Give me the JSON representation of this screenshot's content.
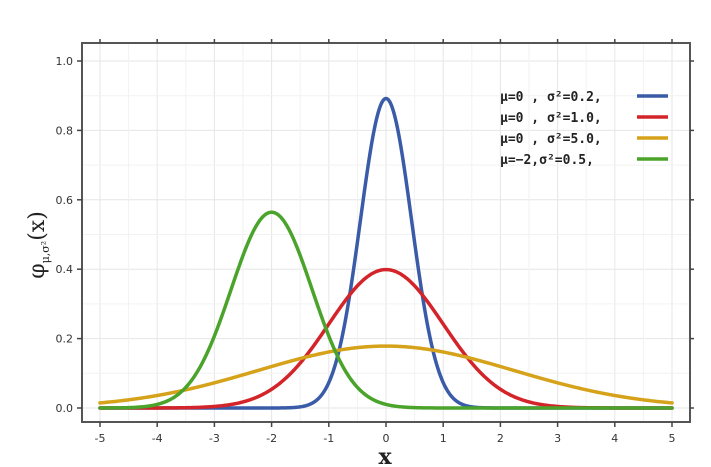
{
  "chart_data": {
    "type": "line",
    "title": "",
    "xlabel": "x",
    "ylabel": "φ",
    "ylabel_subscript": "μ,σ²",
    "ylabel_arg": "(x)",
    "xlim": [
      -5,
      5
    ],
    "ylim": [
      0,
      1.0
    ],
    "x_ticks": [
      -5,
      -4,
      -3,
      -2,
      -1,
      0,
      1,
      2,
      3,
      4,
      5
    ],
    "x_tick_labels": [
      "-5",
      "-4",
      "-3",
      "-2",
      "-1",
      "0",
      "1",
      "2",
      "3",
      "4",
      "5"
    ],
    "y_ticks": [
      0,
      0.2,
      0.4,
      0.6,
      0.8,
      1.0
    ],
    "y_tick_labels": [
      "0.0",
      "0.2",
      "0.4",
      "0.6",
      "0.8",
      "1.0"
    ],
    "grid": true,
    "legend_position": "top-right",
    "series": [
      {
        "name": "μ=0 , σ²=0.2,",
        "mu": 0,
        "variance": 0.2,
        "color": "#3a5ba8"
      },
      {
        "name": "μ=0 , σ²=1.0,",
        "mu": 0,
        "variance": 1.0,
        "color": "#d3242a"
      },
      {
        "name": "μ=0 , σ²=5.0,",
        "mu": 0,
        "variance": 5.0,
        "color": "#d6a21a"
      },
      {
        "name": "μ=−2,σ²=0.5,",
        "mu": -2,
        "variance": 0.5,
        "color": "#4aa32a"
      }
    ]
  }
}
